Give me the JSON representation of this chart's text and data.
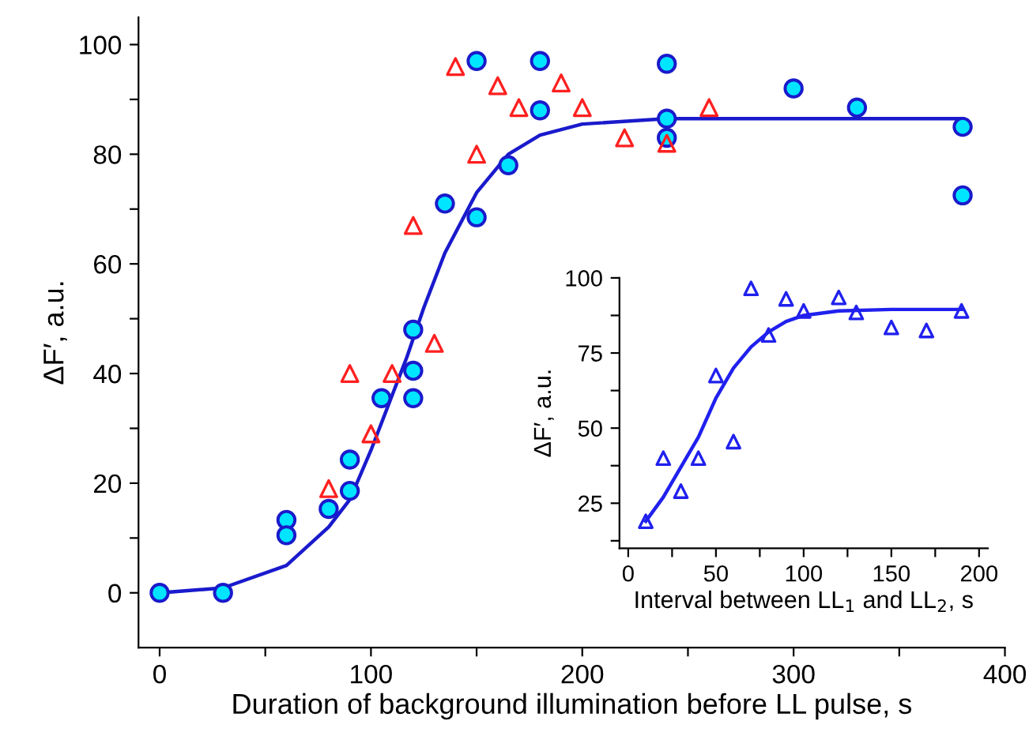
{
  "chart_data": [
    {
      "type": "scatter",
      "xlabel": "Duration of background illumination before LL pulse, s",
      "ylabel": "ΔF′, a.u.",
      "xlim": [
        -10,
        400
      ],
      "ylim": [
        -10,
        105
      ],
      "xticks": [
        0,
        {
          "value": 50,
          "label": null
        },
        100,
        {
          "value": 150,
          "label": null
        },
        200,
        {
          "value": 250,
          "label": null
        },
        300,
        {
          "value": 350,
          "label": null
        },
        400
      ],
      "yticks": [
        0,
        {
          "value": 10,
          "label": null
        },
        20,
        {
          "value": 30,
          "label": null
        },
        40,
        {
          "value": 50,
          "label": null
        },
        60,
        {
          "value": 70,
          "label": null
        },
        80,
        {
          "value": 90,
          "label": null
        },
        100
      ],
      "grid": false,
      "legend": false,
      "series": [
        {
          "marker": "circle",
          "color": "#00e5ff",
          "x": [
            0,
            30,
            60,
            60,
            80,
            90,
            90,
            105,
            120,
            120,
            120,
            135,
            150,
            150,
            165,
            180,
            180,
            240,
            240,
            240,
            300,
            330,
            380,
            380
          ],
          "values": [
            0,
            0,
            13.3,
            10.5,
            15.3,
            24.3,
            18.6,
            35.5,
            48,
            40.5,
            35.5,
            71,
            68.5,
            97,
            78,
            97,
            88,
            96.5,
            86.5,
            83,
            92,
            88.5,
            85,
            72.5
          ]
        },
        {
          "marker": "triangle",
          "color": "#ff2020",
          "x": [
            80,
            90,
            100,
            110,
            120,
            130,
            140,
            150,
            160,
            170,
            190,
            200,
            220,
            240,
            260
          ],
          "values": [
            19,
            40,
            29,
            40,
            67,
            45.5,
            96,
            80,
            92.5,
            88.5,
            93,
            88.5,
            83,
            82,
            88.5
          ]
        },
        {
          "type": "line",
          "marker": "none",
          "line_style": "solid",
          "color": "#1a1acc",
          "x": [
            0,
            30,
            60,
            80,
            90,
            100,
            110,
            117,
            125,
            135,
            150,
            165,
            180,
            200,
            240,
            300,
            380
          ],
          "values": [
            0,
            0.9,
            5,
            12,
            17,
            26,
            36,
            43,
            52,
            62,
            73,
            80,
            83.5,
            85.5,
            86.5,
            86.5,
            86.5
          ]
        }
      ]
    },
    {
      "type": "scatter",
      "xlabel": "Interval between LL$_{1}$ and LL$_{2}$, s",
      "ylabel": "ΔF′, a.u.",
      "xlim": [
        -5,
        205
      ],
      "ylim": [
        10,
        100
      ],
      "xticks": [
        0,
        {
          "value": 25,
          "label": null
        },
        50,
        {
          "value": 75,
          "label": null
        },
        100,
        {
          "value": 125,
          "label": null
        },
        150,
        {
          "value": 175,
          "label": null
        },
        200
      ],
      "yticks": [
        {
          "value": 12.5,
          "label": null
        },
        25,
        {
          "value": 37.5,
          "label": null
        },
        50,
        {
          "value": 62.5,
          "label": null
        },
        75,
        {
          "value": 87.5,
          "label": null
        },
        100
      ],
      "grid": false,
      "legend": false,
      "series": [
        {
          "marker": "triangle",
          "color": "#2020ee",
          "x": [
            10,
            20,
            30,
            40,
            50,
            60,
            70,
            80,
            90,
            100,
            120,
            130,
            150,
            170,
            190
          ],
          "values": [
            19,
            40,
            29,
            40,
            67.5,
            45.5,
            96.5,
            81,
            93,
            89,
            93.5,
            88.5,
            83.5,
            82.5,
            89
          ]
        },
        {
          "type": "line",
          "marker": "none",
          "line_style": "solid",
          "color": "#2020ee",
          "x": [
            10,
            20,
            30,
            40,
            50,
            60,
            70,
            80,
            90,
            100,
            120,
            150,
            190
          ],
          "values": [
            19,
            27,
            37,
            47,
            60,
            70,
            77,
            82,
            85.5,
            87.5,
            89,
            89.5,
            89.5
          ]
        }
      ]
    }
  ]
}
